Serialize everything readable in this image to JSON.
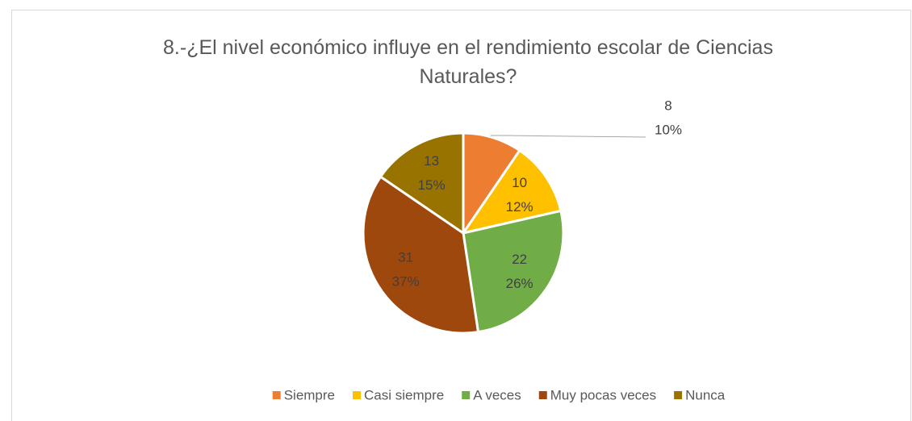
{
  "chart_data": {
    "type": "pie",
    "title": "8.-¿El nivel económico influye en el rendimiento escolar de Ciencias Naturales?",
    "categories": [
      "Siempre",
      "Casi siempre",
      "A veces",
      "Muy pocas veces",
      "Nunca"
    ],
    "values": [
      8,
      10,
      22,
      31,
      13
    ],
    "percent_labels": [
      "10%",
      "12%",
      "26%",
      "37%",
      "15%"
    ],
    "colors": [
      "#ed7d31",
      "#ffc000",
      "#70ad47",
      "#9e480e",
      "#997300"
    ],
    "legend": "bottom"
  }
}
